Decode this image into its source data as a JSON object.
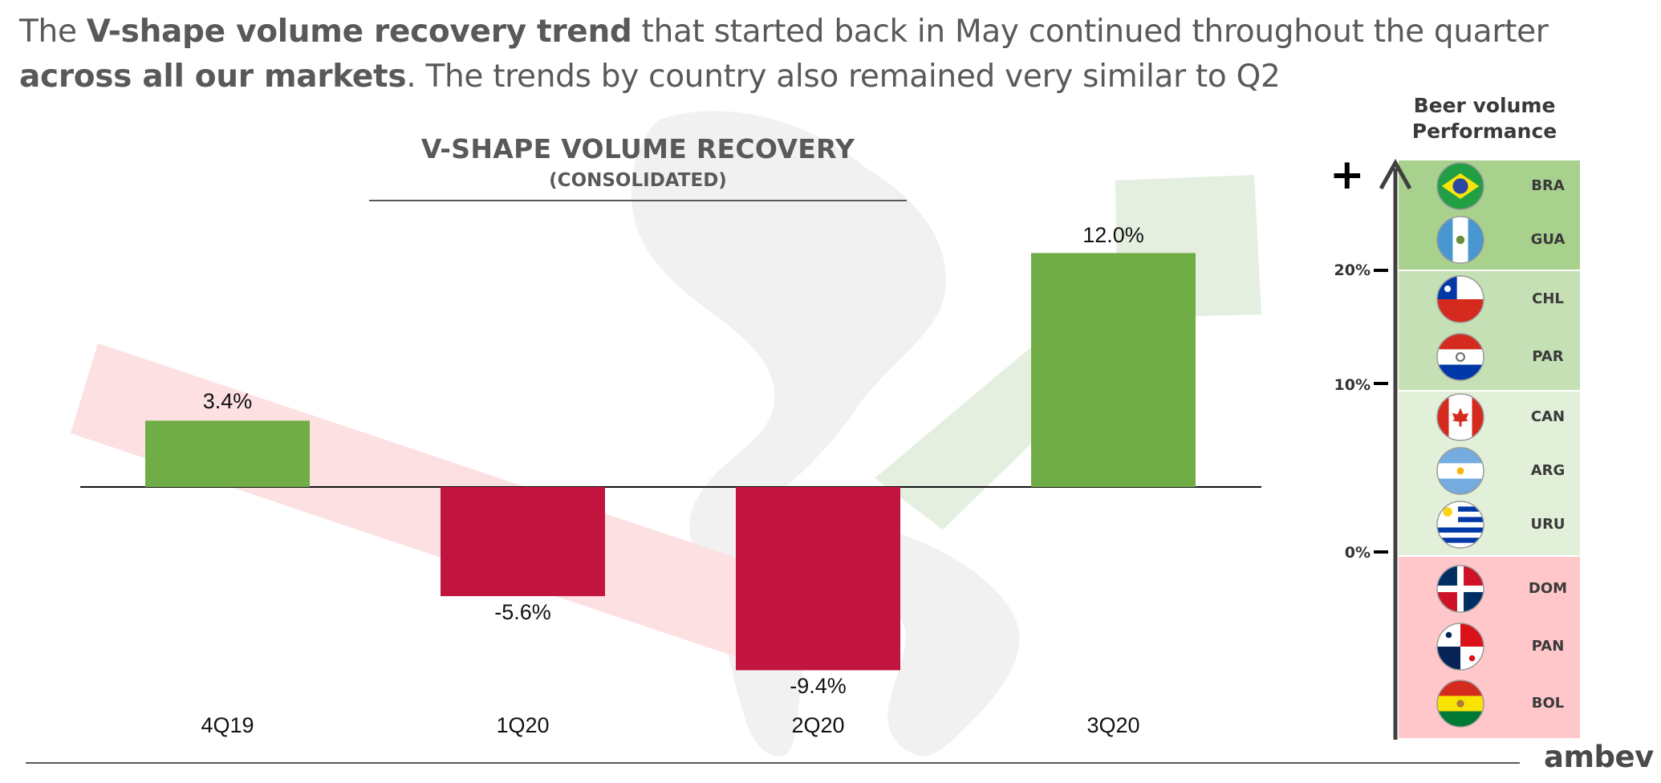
{
  "headline": {
    "p1": "The ",
    "b1": "V-shape volume recovery trend",
    "p2": " that started back in May continued throughout the quarter ",
    "b2": "across all our markets",
    "p3": ". The trends by country also remained very similar to Q2"
  },
  "chart_data": {
    "type": "bar",
    "title": "V-SHAPE VOLUME RECOVERY",
    "subtitle": "(CONSOLIDATED)",
    "categories": [
      "4Q19",
      "1Q20",
      "2Q20",
      "3Q20"
    ],
    "values": [
      3.4,
      -5.6,
      -9.4,
      12.0
    ],
    "value_labels": [
      "3.4%",
      "-5.6%",
      "-9.4%",
      "12.0%"
    ],
    "colors": [
      "#70ad47",
      "#c1143e",
      "#c1143e",
      "#70ad47"
    ],
    "xlabel": "",
    "ylabel": "",
    "grid": false
  },
  "performance": {
    "title_line1": "Beer volume",
    "title_line2": "Performance",
    "plus": "+",
    "ticks": [
      "20%",
      "10%",
      "0%"
    ],
    "bands": [
      {
        "color": "#a9d18e",
        "countries": [
          {
            "code": "BRA",
            "flag": "brazil-flag"
          },
          {
            "code": "GUA",
            "flag": "guatemala-flag"
          }
        ]
      },
      {
        "color": "#c5e0b4",
        "countries": [
          {
            "code": "CHL",
            "flag": "chile-flag"
          },
          {
            "code": "PAR",
            "flag": "paraguay-flag"
          }
        ]
      },
      {
        "color": "#e2f0d9",
        "countries": [
          {
            "code": "CAN",
            "flag": "canada-flag"
          },
          {
            "code": "ARG",
            "flag": "argentina-flag"
          },
          {
            "code": "URU",
            "flag": "uruguay-flag"
          }
        ]
      },
      {
        "color": "#ffc7c9",
        "countries": [
          {
            "code": "DOM",
            "flag": "dominican-republic-flag"
          },
          {
            "code": "PAN",
            "flag": "panama-flag"
          },
          {
            "code": "BOL",
            "flag": "bolivia-flag"
          }
        ]
      }
    ]
  },
  "logo": "ambev"
}
